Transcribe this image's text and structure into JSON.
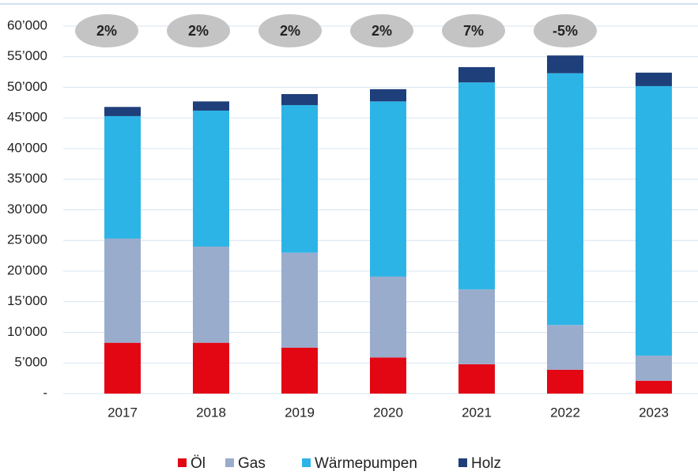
{
  "chart_data": {
    "type": "stacked_bar",
    "categories": [
      "2017",
      "2018",
      "2019",
      "2020",
      "2021",
      "2022",
      "2023"
    ],
    "series": [
      {
        "name": "Öl",
        "color": "#e30613",
        "values": [
          8300,
          8300,
          7500,
          5900,
          4800,
          3900,
          2100
        ]
      },
      {
        "name": "Gas",
        "color": "#9aaccc",
        "values": [
          17000,
          15700,
          15500,
          13200,
          12200,
          7300,
          4100
        ]
      },
      {
        "name": "Wärmepumpen",
        "color": "#2db4e6",
        "values": [
          20000,
          22200,
          24100,
          28600,
          33800,
          41100,
          44000
        ]
      },
      {
        "name": "Holz",
        "color": "#1f3f7a",
        "values": [
          1500,
          1500,
          1800,
          2000,
          2500,
          2900,
          2200
        ]
      }
    ],
    "annotations": [
      "2%",
      "2%",
      "2%",
      "2%",
      "7%",
      "-5%"
    ],
    "ylim": [
      0,
      60000
    ],
    "yticks": [
      {
        "value": 0,
        "label": "-"
      },
      {
        "value": 5000,
        "label": "5’000"
      },
      {
        "value": 10000,
        "label": "10’000"
      },
      {
        "value": 15000,
        "label": "15’000"
      },
      {
        "value": 20000,
        "label": "20’000"
      },
      {
        "value": 25000,
        "label": "25’000"
      },
      {
        "value": 30000,
        "label": "30’000"
      },
      {
        "value": 35000,
        "label": "35’000"
      },
      {
        "value": 40000,
        "label": "40’000"
      },
      {
        "value": 45000,
        "label": "45’000"
      },
      {
        "value": 50000,
        "label": "50’000"
      },
      {
        "value": 55000,
        "label": "55’000"
      },
      {
        "value": 60000,
        "label": "60’000"
      }
    ],
    "grid": true
  }
}
